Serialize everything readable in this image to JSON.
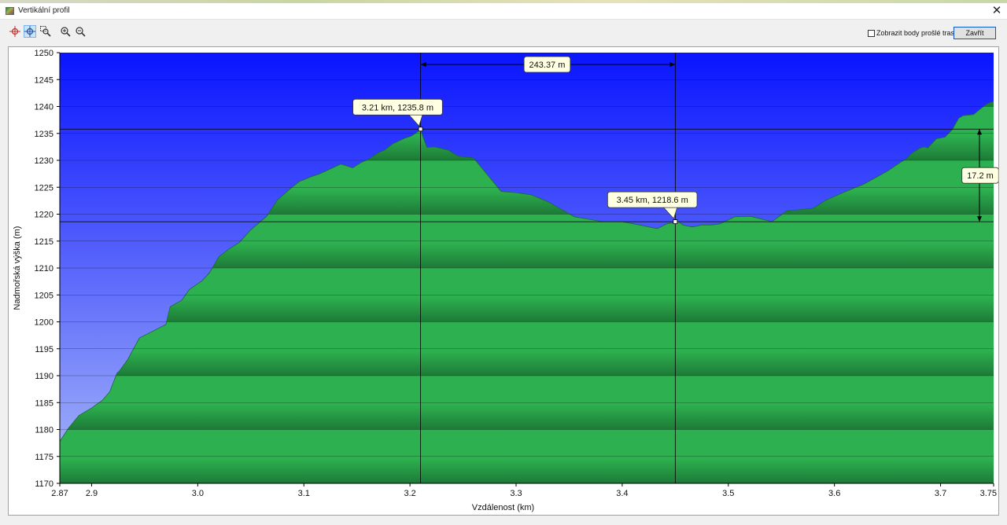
{
  "window": {
    "title": "Vertikální profil",
    "close_glyph": "✕"
  },
  "toolbar": {
    "tools": [
      {
        "name": "crosshair-red-icon",
        "active": false
      },
      {
        "name": "crosshair-blue-icon",
        "active": true
      },
      {
        "name": "zoom-rect-icon",
        "active": false
      },
      {
        "name": "zoom-in-icon",
        "active": false
      },
      {
        "name": "zoom-out-icon",
        "active": false
      }
    ],
    "show_points_label": "Zobrazit body prošlé trasy",
    "show_points_checked": false,
    "close_label": "Zavřít"
  },
  "colors": {
    "sky_top": "#0a14ff",
    "sky_bottom": "#a8b8f8",
    "terrain_light": "#2db04f",
    "terrain_dark": "#1d7a37",
    "callout_bg": "#ffffe1",
    "focus_border": "#0a58c9"
  },
  "chart_data": {
    "type": "area",
    "title": "",
    "xlabel": "Vzdálenost  (km)",
    "ylabel": "Nadmořská výška (m)",
    "xlim": [
      2.87,
      3.75
    ],
    "ylim": [
      1170,
      1250
    ],
    "x_ticks": [
      "2.87",
      "2.9",
      "3.0",
      "3.1",
      "3.2",
      "3.3",
      "3.4",
      "3.5",
      "3.6",
      "3.7",
      "3.75"
    ],
    "y_ticks": [
      "1250",
      "1245",
      "1240",
      "1235",
      "1230",
      "1225",
      "1220",
      "1215",
      "1210",
      "1205",
      "1200",
      "1195",
      "1190",
      "1185",
      "1180",
      "1175",
      "1170"
    ],
    "grid": true,
    "series": [
      {
        "x": [
          2.87,
          2.878,
          2.888,
          2.9,
          2.91,
          2.917,
          2.924,
          2.926,
          2.934,
          2.945,
          2.955,
          2.97,
          2.974,
          2.985,
          2.992,
          3.004,
          3.011,
          3.02,
          3.03,
          3.039,
          3.05,
          3.065,
          3.075,
          3.087,
          3.096,
          3.1,
          3.106,
          3.115,
          3.127,
          3.135,
          3.146,
          3.154,
          3.162,
          3.17,
          3.176,
          3.184,
          3.195,
          3.201,
          3.205,
          3.21,
          3.212,
          3.216,
          3.223,
          3.236,
          3.245,
          3.26,
          3.286,
          3.3,
          3.314,
          3.33,
          3.355,
          3.382,
          3.4,
          3.416,
          3.433,
          3.442,
          3.453,
          3.457,
          3.466,
          3.475,
          3.484,
          3.492,
          3.506,
          3.521,
          3.541,
          3.555,
          3.566,
          3.58,
          3.592,
          3.608,
          3.628,
          3.65,
          3.662,
          3.668,
          3.672,
          3.68,
          3.684,
          3.688,
          3.696,
          3.704,
          3.711,
          3.717,
          3.721,
          3.731,
          3.739,
          3.745,
          3.75
        ],
        "y": [
          1177.8,
          1180.2,
          1182.6,
          1184.0,
          1185.4,
          1187.0,
          1190.5,
          1190.8,
          1193.0,
          1197.0,
          1198.0,
          1199.5,
          1202.8,
          1204.0,
          1206.0,
          1207.6,
          1209.1,
          1212.1,
          1213.6,
          1214.7,
          1217.1,
          1219.6,
          1222.6,
          1224.7,
          1226.1,
          1226.4,
          1226.9,
          1227.5,
          1228.6,
          1229.3,
          1228.6,
          1229.6,
          1230.3,
          1231.4,
          1231.9,
          1233.1,
          1234.1,
          1234.5,
          1235.0,
          1235.8,
          1234.5,
          1232.4,
          1232.5,
          1231.9,
          1230.8,
          1230.4,
          1224.2,
          1224.0,
          1223.6,
          1222.3,
          1219.5,
          1218.6,
          1218.6,
          1218.0,
          1217.3,
          1218.2,
          1218.6,
          1218.0,
          1217.6,
          1218.0,
          1218.0,
          1218.2,
          1219.5,
          1219.6,
          1218.6,
          1220.6,
          1220.8,
          1221.1,
          1222.6,
          1224.0,
          1225.6,
          1228.0,
          1229.6,
          1230.3,
          1231.2,
          1232.2,
          1232.5,
          1232.3,
          1234.0,
          1234.3,
          1235.7,
          1237.8,
          1238.3,
          1238.5,
          1239.8,
          1240.6,
          1240.9
        ]
      }
    ],
    "markers": [
      {
        "x": 3.21,
        "y": 1235.8,
        "label": "3.21 km, 1235.8 m"
      },
      {
        "x": 3.45,
        "y": 1218.6,
        "label": "3.45 km, 1218.6 m"
      }
    ],
    "horizontal_distance_label": "243.37 m",
    "vertical_difference_label": "17.2 m"
  }
}
